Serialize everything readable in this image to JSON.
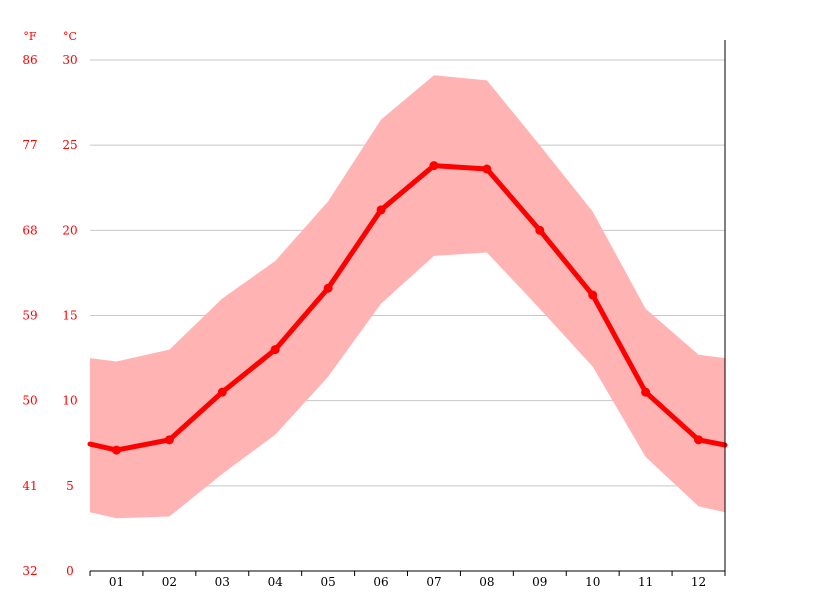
{
  "chart_data": {
    "type": "line",
    "title": "",
    "xlabel": "",
    "ylabel": "",
    "categories": [
      "01",
      "02",
      "03",
      "04",
      "05",
      "06",
      "07",
      "08",
      "09",
      "10",
      "11",
      "12"
    ],
    "ylim": [
      0,
      30
    ],
    "y_ticks_c": [
      "0",
      "5",
      "10",
      "15",
      "20",
      "25",
      "30"
    ],
    "y_ticks_f": [
      "32",
      "41",
      "50",
      "59",
      "68",
      "77",
      "86"
    ],
    "unit_f": "°F",
    "unit_c": "°C",
    "series": [
      {
        "values": [
          7.1,
          7.7,
          10.5,
          13.0,
          16.6,
          21.2,
          23.8,
          23.6,
          20.0,
          16.2,
          10.5,
          7.7
        ]
      }
    ],
    "band": {
      "upper": [
        12.3,
        13.0,
        16.0,
        18.2,
        21.7,
        26.5,
        29.1,
        28.8,
        25.0,
        21.1,
        15.4,
        12.7
      ],
      "lower": [
        3.1,
        3.2,
        5.7,
        8.0,
        11.4,
        15.7,
        18.5,
        18.7,
        15.4,
        12.0,
        6.7,
        3.8
      ]
    },
    "edge_values": {
      "left": {
        "mean": 7.45,
        "upper": 12.5,
        "lower": 3.45
      },
      "right": {
        "mean": 7.4,
        "upper": 12.5,
        "lower": 3.45
      }
    },
    "grid": true,
    "colors": {
      "line": "#ff0000",
      "band": "#ffb3b3",
      "grid": "#c8c8c8",
      "label_red": "#ff0000",
      "axis": "#000000"
    }
  }
}
